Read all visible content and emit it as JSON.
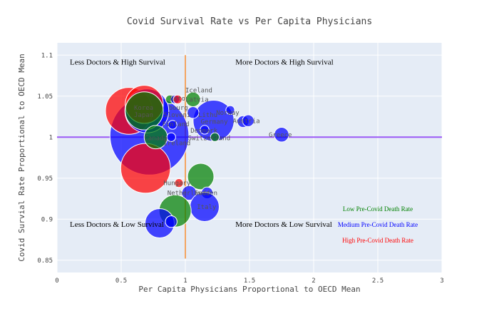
{
  "chart_data": {
    "type": "scatter",
    "title": "Covid Survival Rate vs Per Capita Physicians",
    "xlabel": "Per Capita Physicians Proportional to OECD Mean",
    "ylabel": "Covid Survial Rate Proportional to OECD Mean",
    "xlim": [
      0,
      3
    ],
    "ylim": [
      0.835,
      1.115
    ],
    "xticks": [
      0,
      0.5,
      1,
      1.5,
      2,
      2.5,
      3
    ],
    "xtick_labels": [
      "0",
      "0.5",
      "1",
      "1.5",
      "2",
      "2.5",
      "3"
    ],
    "yticks": [
      0.85,
      0.9,
      0.95,
      1,
      1.05,
      1.1
    ],
    "ytick_labels": [
      "0.85",
      "0.9",
      "0.95",
      "1",
      "1.05",
      "1.1"
    ],
    "grid": true,
    "reference_lines": [
      {
        "orientation": "vertical",
        "value": 1,
        "color": "#f4a460"
      },
      {
        "orientation": "horizontal",
        "value": 1,
        "color": "#9b59f6"
      }
    ],
    "quadrant_labels": [
      {
        "text": "Less Doctors & High Survival",
        "x": 0.1,
        "y": 1.092
      },
      {
        "text": "More Doctors & High Survival",
        "x": 1.39,
        "y": 1.092
      },
      {
        "text": "Less Doctors & Low Survival",
        "x": 0.1,
        "y": 0.894
      },
      {
        "text": "More Doctors & Low Survival",
        "x": 1.39,
        "y": 0.894
      }
    ],
    "legend": {
      "placement": "bottom-right",
      "entries": [
        {
          "text": "Low Pre-Covid Death Rate",
          "color": "#008000"
        },
        {
          "text": "Medium Pre-Covid Death Rate",
          "color": "#0000ff"
        },
        {
          "text": "High Pre-Covid Death Rate",
          "color": "#ff0000"
        }
      ]
    },
    "points": [
      {
        "x": 0.72,
        "y": 1.002,
        "size": 27,
        "color": "#0000ff"
      },
      {
        "x": 0.69,
        "y": 0.962,
        "size": 17,
        "color": "#ff0000"
      },
      {
        "x": 0.56,
        "y": 1.032,
        "size": 16,
        "color": "#ff0000"
      },
      {
        "x": 0.7,
        "y": 1.032,
        "size": 15,
        "color": "#0000ff"
      },
      {
        "x": 0.68,
        "y": 1.04,
        "size": 13,
        "color": "#ff0000"
      },
      {
        "x": 0.68,
        "y": 1.032,
        "size": 13,
        "color": "#008000"
      },
      {
        "x": 1.22,
        "y": 1.02,
        "size": 14,
        "color": "#0000ff"
      },
      {
        "x": 0.77,
        "y": 1.0,
        "size": 8,
        "color": "#008000"
      },
      {
        "x": 1.06,
        "y": 1.046,
        "size": 5,
        "color": "#008000"
      },
      {
        "x": 0.88,
        "y": 1.046,
        "size": 3,
        "color": "#008000"
      },
      {
        "x": 0.92,
        "y": 1.046,
        "size": 3,
        "color": "#0000ff"
      },
      {
        "x": 0.94,
        "y": 1.046,
        "size": 3,
        "color": "#ff0000"
      },
      {
        "x": 0.9,
        "y": 1.015,
        "size": 3,
        "color": "#0000ff"
      },
      {
        "x": 1.06,
        "y": 1.03,
        "size": 4,
        "color": "#0000ff"
      },
      {
        "x": 1.35,
        "y": 1.033,
        "size": 3,
        "color": "#0000ff"
      },
      {
        "x": 1.45,
        "y": 1.019,
        "size": 4,
        "color": "#0000ff"
      },
      {
        "x": 1.49,
        "y": 1.02,
        "size": 4,
        "color": "#0000ff"
      },
      {
        "x": 1.15,
        "y": 1.009,
        "size": 3,
        "color": "#0000ff"
      },
      {
        "x": 1.23,
        "y": 1.0,
        "size": 3,
        "color": "#008000"
      },
      {
        "x": 0.89,
        "y": 1.0,
        "size": 3,
        "color": "#0000ff"
      },
      {
        "x": 1.75,
        "y": 1.003,
        "size": 5,
        "color": "#0000ff"
      },
      {
        "x": 1.12,
        "y": 0.952,
        "size": 9,
        "color": "#008000"
      },
      {
        "x": 0.95,
        "y": 0.944,
        "size": 3,
        "color": "#ff0000"
      },
      {
        "x": 1.03,
        "y": 0.932,
        "size": 5,
        "color": "#0000ff"
      },
      {
        "x": 1.17,
        "y": 0.932,
        "size": 4,
        "color": "#0000ff"
      },
      {
        "x": 1.15,
        "y": 0.915,
        "size": 10,
        "color": "#0000ff"
      },
      {
        "x": 0.92,
        "y": 0.91,
        "size": 11,
        "color": "#008000"
      },
      {
        "x": 0.8,
        "y": 0.895,
        "size": 10,
        "color": "#0000ff"
      },
      {
        "x": 0.89,
        "y": 0.897,
        "size": 4,
        "color": "#0000ff"
      }
    ],
    "labels": [
      {
        "text": "Iceland",
        "x": 1.0,
        "y": 1.057
      },
      {
        "text": "Latvia",
        "x": 1.0,
        "y": 1.046
      },
      {
        "text": "Esto",
        "x": 0.88,
        "y": 1.047
      },
      {
        "text": "Korea",
        "x": 0.6,
        "y": 1.036
      },
      {
        "text": "bourg",
        "x": 0.87,
        "y": 1.036
      },
      {
        "text": "Japan",
        "x": 0.6,
        "y": 1.027
      },
      {
        "text": "Sloveni",
        "x": 0.83,
        "y": 1.027
      },
      {
        "text": "Lithu",
        "x": 1.1,
        "y": 1.027
      },
      {
        "text": "Norway",
        "x": 1.24,
        "y": 1.03
      },
      {
        "text": "Germany",
        "x": 1.12,
        "y": 1.019
      },
      {
        "text": "Austria",
        "x": 1.37,
        "y": 1.02
      },
      {
        "text": "Finland",
        "x": 0.82,
        "y": 1.016
      },
      {
        "text": "Denmark",
        "x": 1.04,
        "y": 1.008
      },
      {
        "text": "Greece",
        "x": 1.65,
        "y": 1.003
      },
      {
        "text": "Switzerland",
        "x": 1.02,
        "y": 0.999
      },
      {
        "text": "Canada",
        "x": 0.68,
        "y": 0.999
      },
      {
        "text": "Ireland",
        "x": 0.83,
        "y": 0.993
      },
      {
        "text": "Hungary",
        "x": 0.83,
        "y": 0.944
      },
      {
        "text": "Netherlands",
        "x": 0.86,
        "y": 0.932
      },
      {
        "text": "Sweden",
        "x": 1.07,
        "y": 0.932
      },
      {
        "text": "Italy",
        "x": 1.09,
        "y": 0.915
      }
    ]
  }
}
